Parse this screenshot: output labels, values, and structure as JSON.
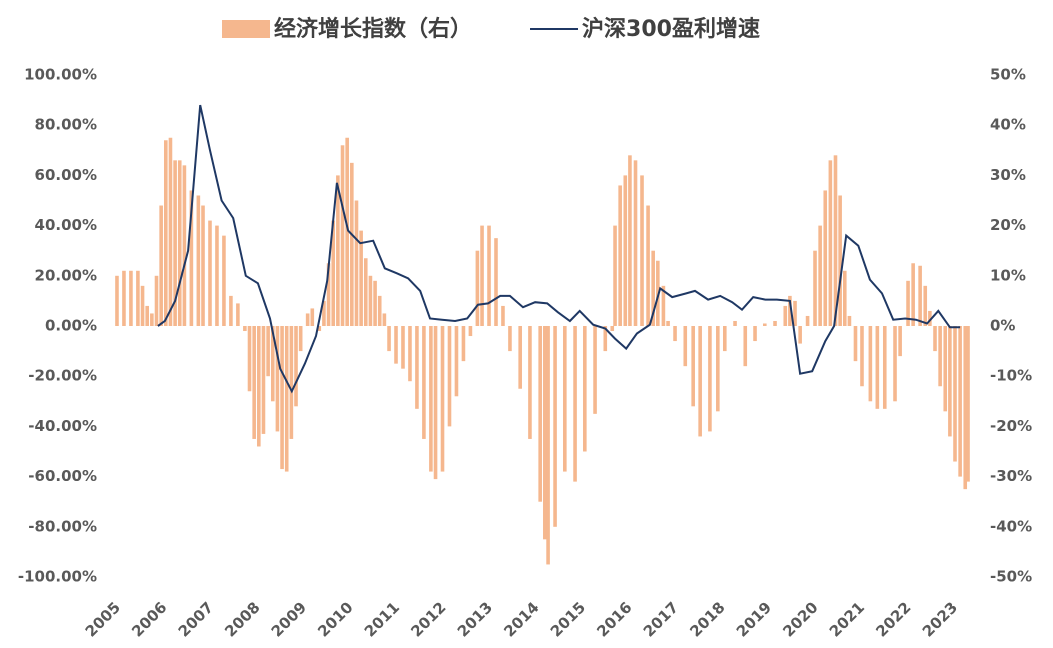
{
  "chart_data": {
    "type": "combo",
    "xlim": [
      2005,
      2023.6
    ],
    "xticks": [
      2005,
      2006,
      2007,
      2008,
      2009,
      2010,
      2011,
      2012,
      2013,
      2014,
      2015,
      2016,
      2017,
      2018,
      2019,
      2020,
      2021,
      2022,
      2023
    ],
    "ylim": [
      -100,
      100
    ],
    "yticks": [
      {
        "value": -100,
        "label": "-100.00%"
      },
      {
        "value": -80,
        "label": "-80.00%"
      },
      {
        "value": -60,
        "label": "-60.00%"
      },
      {
        "value": -40,
        "label": "-40.00%"
      },
      {
        "value": -20,
        "label": "-20.00%"
      },
      {
        "value": 0,
        "label": "0.00%"
      },
      {
        "value": 20,
        "label": "20.00%"
      },
      {
        "value": 40,
        "label": "40.00%"
      },
      {
        "value": 60,
        "label": "60.00%"
      },
      {
        "value": 80,
        "label": "80.00%"
      },
      {
        "value": 100,
        "label": "100.00%"
      }
    ],
    "y2lim": [
      -50,
      50
    ],
    "y2ticks": [
      {
        "value": -50,
        "label": "-50%"
      },
      {
        "value": -40,
        "label": "-40%"
      },
      {
        "value": -30,
        "label": "-30%"
      },
      {
        "value": -20,
        "label": "-20%"
      },
      {
        "value": -10,
        "label": "-10%"
      },
      {
        "value": 0,
        "label": "0%"
      },
      {
        "value": 10,
        "label": "10%"
      },
      {
        "value": 20,
        "label": "20%"
      },
      {
        "value": 30,
        "label": "30%"
      },
      {
        "value": 40,
        "label": "40%"
      },
      {
        "value": 50,
        "label": "50%"
      }
    ],
    "legend": "top",
    "series": [
      {
        "name": "经济增长指数（右）",
        "type": "bar",
        "axis": "y2",
        "color": "#f5b78e",
        "x": [
          2005.15,
          2005.3,
          2005.45,
          2005.6,
          2005.7,
          2005.8,
          2005.9,
          2006.0,
          2006.1,
          2006.2,
          2006.3,
          2006.4,
          2006.5,
          2006.6,
          2006.75,
          2006.9,
          2007.0,
          2007.15,
          2007.3,
          2007.45,
          2007.6,
          2007.75,
          2007.9,
          2008.0,
          2008.1,
          2008.2,
          2008.3,
          2008.4,
          2008.5,
          2008.6,
          2008.7,
          2008.8,
          2008.9,
          2009.0,
          2009.1,
          2009.25,
          2009.35,
          2009.5,
          2009.6,
          2009.7,
          2009.8,
          2009.9,
          2010.0,
          2010.1,
          2010.2,
          2010.3,
          2010.4,
          2010.5,
          2010.6,
          2010.7,
          2010.8,
          2010.9,
          2011.0,
          2011.15,
          2011.3,
          2011.45,
          2011.6,
          2011.75,
          2011.9,
          2012.0,
          2012.15,
          2012.3,
          2012.45,
          2012.6,
          2012.75,
          2012.9,
          2013.0,
          2013.15,
          2013.3,
          2013.45,
          2013.6,
          2013.82,
          2014.03,
          2014.25,
          2014.35,
          2014.42,
          2014.57,
          2014.78,
          2015.0,
          2015.21,
          2015.43,
          2015.65,
          2015.8,
          2015.86,
          2015.97,
          2016.08,
          2016.18,
          2016.3,
          2016.44,
          2016.57,
          2016.68,
          2016.78,
          2016.9,
          2017.0,
          2017.15,
          2017.37,
          2017.54,
          2017.69,
          2017.9,
          2018.07,
          2018.22,
          2018.44,
          2018.66,
          2018.87,
          2019.08,
          2019.3,
          2019.52,
          2019.62,
          2019.73,
          2019.84,
          2020.0,
          2020.16,
          2020.27,
          2020.38,
          2020.49,
          2020.6,
          2020.7,
          2020.8,
          2020.9,
          2021.03,
          2021.17,
          2021.35,
          2021.5,
          2021.66,
          2021.88,
          2021.99,
          2022.16,
          2022.27,
          2022.42,
          2022.53,
          2022.63,
          2022.74,
          2022.85,
          2022.96,
          2023.06,
          2023.17,
          2023.28,
          2023.39,
          2023.45
        ],
        "values": [
          10,
          11,
          11,
          11,
          8,
          4,
          2.5,
          10,
          24,
          37,
          37.5,
          33,
          33,
          32,
          27,
          26,
          24,
          21,
          20,
          18,
          6,
          4.5,
          -1,
          -13,
          -22.5,
          -24,
          -21.5,
          -10,
          -15,
          -21,
          -28.5,
          -29,
          -22.5,
          -16,
          -5,
          2.5,
          3.5,
          -1,
          5,
          12.5,
          21,
          30,
          36,
          37.5,
          32.5,
          25,
          19,
          13.5,
          10,
          9,
          6,
          2.5,
          -5,
          -7.5,
          -8.5,
          -11,
          -16.5,
          -22.5,
          -29,
          -30.5,
          -29,
          -20,
          -14,
          -7,
          -2,
          15,
          20,
          20,
          17.5,
          4,
          -5,
          -12.5,
          -22.5,
          -35,
          -42.5,
          -47.5,
          -40,
          -29,
          -31,
          -25,
          -17.5,
          -5,
          -1,
          20,
          28,
          30,
          34,
          33,
          30,
          24,
          15,
          13,
          8,
          1,
          -3,
          -8,
          -16,
          -22,
          -21,
          -17,
          -5,
          1,
          -8,
          -3,
          0.5,
          1,
          4,
          6,
          5,
          -3.5,
          2,
          15,
          20,
          27,
          33,
          34,
          26,
          11,
          2,
          -7,
          -12,
          -15,
          -16.5,
          -16.5,
          -15,
          -6,
          9,
          12.5,
          12,
          8,
          3,
          -5,
          -12,
          -17,
          -22,
          -27,
          -30,
          -32.5,
          -31
        ]
      },
      {
        "name": "沪深300盈利增速",
        "type": "line",
        "axis": "y",
        "color": "#1f3864",
        "x": [
          2006.03,
          2006.18,
          2006.4,
          2006.68,
          2006.94,
          2007.15,
          2007.4,
          2007.65,
          2007.92,
          2008.18,
          2008.44,
          2008.66,
          2008.91,
          2009.19,
          2009.43,
          2009.67,
          2009.88,
          2010.12,
          2010.38,
          2010.66,
          2010.91,
          2011.17,
          2011.41,
          2011.67,
          2011.88,
          2012.14,
          2012.42,
          2012.68,
          2012.91,
          2013.13,
          2013.39,
          2013.6,
          2013.88,
          2014.14,
          2014.4,
          2014.63,
          2014.89,
          2015.1,
          2015.39,
          2015.65,
          2015.86,
          2016.1,
          2016.33,
          2016.61,
          2016.83,
          2017.09,
          2017.39,
          2017.58,
          2017.86,
          2018.12,
          2018.38,
          2018.59,
          2018.83,
          2019.09,
          2019.34,
          2019.62,
          2019.84,
          2020.1,
          2020.38,
          2020.57,
          2020.83,
          2021.09,
          2021.34,
          2021.6,
          2021.84,
          2022.1,
          2022.33,
          2022.57,
          2022.81,
          2023.06,
          2023.28
        ],
        "values": [
          0,
          2,
          10,
          30,
          88,
          70,
          50,
          43,
          20,
          17,
          3,
          -17,
          -26,
          -15,
          -4,
          18,
          57,
          38,
          33,
          34,
          23,
          21,
          19,
          14,
          3,
          2.5,
          2,
          3,
          8.5,
          9,
          12,
          12,
          7.5,
          9.5,
          9,
          5.5,
          2,
          6,
          0.5,
          -1,
          -5,
          -9,
          -3,
          0.5,
          15,
          11.5,
          13,
          14,
          10.5,
          12,
          9.5,
          6.5,
          11.5,
          10.5,
          10.5,
          10,
          -19,
          -18,
          -6,
          0,
          36,
          32,
          18.5,
          13,
          2.5,
          3,
          2.5,
          1,
          6,
          -0.5,
          -0.5
        ]
      }
    ]
  }
}
